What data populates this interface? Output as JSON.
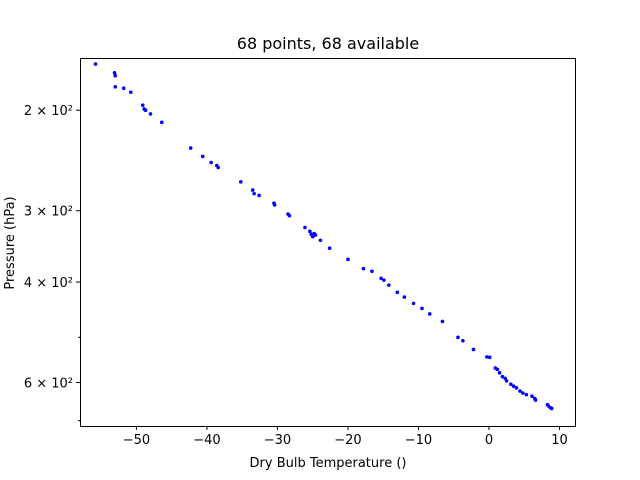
{
  "chart_data": {
    "type": "scatter",
    "title": "68 points, 68 available",
    "xlabel": "Dry Bulb Temperature ()",
    "ylabel": "Pressure (hPa)",
    "xlim": [
      -58.0,
      12.2
    ],
    "ylim": [
      715,
      162
    ],
    "y_scale": "log",
    "y_inverted": true,
    "x_ticks": [
      -50,
      -40,
      -30,
      -20,
      -10,
      0,
      10
    ],
    "x_tick_labels": [
      "−50",
      "−40",
      "−30",
      "−20",
      "−10",
      "0",
      "10"
    ],
    "y_major_ticks": [
      200,
      300,
      400,
      600
    ],
    "y_major_tick_labels": [
      "2 × 10²",
      "3 × 10²",
      "4 × 10²",
      "6 × 10²"
    ],
    "y_minor_ticks": [
      500,
      700
    ],
    "grid": false,
    "marker_color": "#0000ff",
    "points": [
      [
        -55.8,
        166
      ],
      [
        -53.1,
        172
      ],
      [
        -53.0,
        174
      ],
      [
        -53.0,
        182
      ],
      [
        -51.8,
        183
      ],
      [
        -50.8,
        186
      ],
      [
        -49.1,
        196
      ],
      [
        -48.9,
        199
      ],
      [
        -48.7,
        200
      ],
      [
        -48.0,
        203
      ],
      [
        -46.4,
        210
      ],
      [
        -42.3,
        233
      ],
      [
        -40.6,
        241
      ],
      [
        -39.4,
        247
      ],
      [
        -38.6,
        250
      ],
      [
        -38.4,
        252
      ],
      [
        -35.2,
        267
      ],
      [
        -33.5,
        276
      ],
      [
        -33.3,
        280
      ],
      [
        -32.6,
        282
      ],
      [
        -30.5,
        291
      ],
      [
        -30.4,
        293
      ],
      [
        -28.5,
        304
      ],
      [
        -28.3,
        306
      ],
      [
        -26.1,
        321
      ],
      [
        -25.4,
        326
      ],
      [
        -25.2,
        330
      ],
      [
        -25.0,
        333
      ],
      [
        -24.8,
        329
      ],
      [
        -24.6,
        331
      ],
      [
        -23.9,
        338
      ],
      [
        -22.6,
        349
      ],
      [
        -20.0,
        365
      ],
      [
        -17.8,
        379
      ],
      [
        -16.6,
        383
      ],
      [
        -15.3,
        394
      ],
      [
        -14.9,
        397
      ],
      [
        -14.2,
        405
      ],
      [
        -13.0,
        417
      ],
      [
        -12.0,
        425
      ],
      [
        -10.7,
        436
      ],
      [
        -9.5,
        445
      ],
      [
        -8.4,
        455
      ],
      [
        -6.6,
        469
      ],
      [
        -4.4,
        500
      ],
      [
        -3.7,
        507
      ],
      [
        -2.2,
        525
      ],
      [
        -0.3,
        541
      ],
      [
        0.1,
        542
      ],
      [
        0.9,
        566
      ],
      [
        1.2,
        569
      ],
      [
        1.5,
        577
      ],
      [
        1.9,
        586
      ],
      [
        2.3,
        590
      ],
      [
        2.5,
        596
      ],
      [
        3.1,
        604
      ],
      [
        3.5,
        609
      ],
      [
        3.9,
        613
      ],
      [
        4.4,
        621
      ],
      [
        4.8,
        626
      ],
      [
        5.3,
        630
      ],
      [
        6.1,
        634
      ],
      [
        6.5,
        640
      ],
      [
        6.6,
        644
      ],
      [
        8.3,
        656
      ],
      [
        8.4,
        659
      ],
      [
        8.7,
        664
      ],
      [
        8.9,
        666
      ]
    ]
  }
}
